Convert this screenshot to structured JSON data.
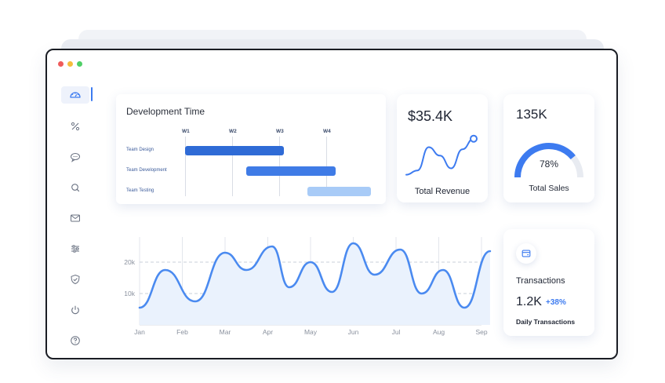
{
  "sidebar": {
    "items": [
      {
        "icon": "gauge-icon",
        "active": true
      },
      {
        "icon": "percent-icon"
      },
      {
        "icon": "chat-icon"
      },
      {
        "icon": "search-icon"
      },
      {
        "icon": "mail-icon"
      },
      {
        "icon": "sliders-icon"
      },
      {
        "icon": "shield-check-icon"
      },
      {
        "icon": "power-icon"
      },
      {
        "icon": "help-icon"
      }
    ]
  },
  "development_time": {
    "title": "Development Time",
    "weeks": [
      "W1",
      "W2",
      "W3",
      "W4"
    ],
    "tasks": [
      {
        "label": "Team Design",
        "start": 0.0,
        "end": 2.1,
        "color": "#2f6bd6"
      },
      {
        "label": "Team Development",
        "start": 1.3,
        "end": 3.2,
        "color": "#3f7be6"
      },
      {
        "label": "Team Testing",
        "start": 2.6,
        "end": 3.95,
        "color": "#a8cbf7"
      }
    ]
  },
  "revenue": {
    "value": "$35.4K",
    "label": "Total Revenue",
    "sparkline": [
      0.1,
      0.2,
      0.75,
      0.55,
      0.25,
      0.7,
      0.95
    ],
    "color": "#3d7bf0"
  },
  "sales": {
    "value": "135K",
    "percent_label": "78%",
    "percent": 0.78,
    "label": "Total Sales",
    "color": "#3d7bf0",
    "track_color": "#e8ebf1"
  },
  "transactions": {
    "icon": "card-icon",
    "title": "Transactions",
    "value": "1.2K",
    "change": "+38%",
    "subtitle": "Daily Transactions"
  },
  "chart_data": {
    "type": "area",
    "x": [
      "Jan",
      "Feb",
      "Mar",
      "Apr",
      "May",
      "Jun",
      "Jul",
      "Aug",
      "Sep"
    ],
    "yticks": [
      "10k",
      "20k"
    ],
    "ylim": [
      0,
      28
    ],
    "series": [
      {
        "points": [
          [
            0,
            5.5
          ],
          [
            0.6,
            17.5
          ],
          [
            1.3,
            7.5
          ],
          [
            2.0,
            23
          ],
          [
            2.5,
            17.5
          ],
          [
            3.1,
            25
          ],
          [
            3.5,
            12
          ],
          [
            4.0,
            20
          ],
          [
            4.5,
            10.5
          ],
          [
            5.0,
            26
          ],
          [
            5.5,
            16
          ],
          [
            6.1,
            24
          ],
          [
            6.6,
            10
          ],
          [
            7.1,
            17.5
          ],
          [
            7.6,
            5.5
          ],
          [
            8.2,
            23.5
          ]
        ]
      }
    ],
    "color": "#4a8af0",
    "fill": "#eaf2fd",
    "grid": "dashed horizontal"
  }
}
